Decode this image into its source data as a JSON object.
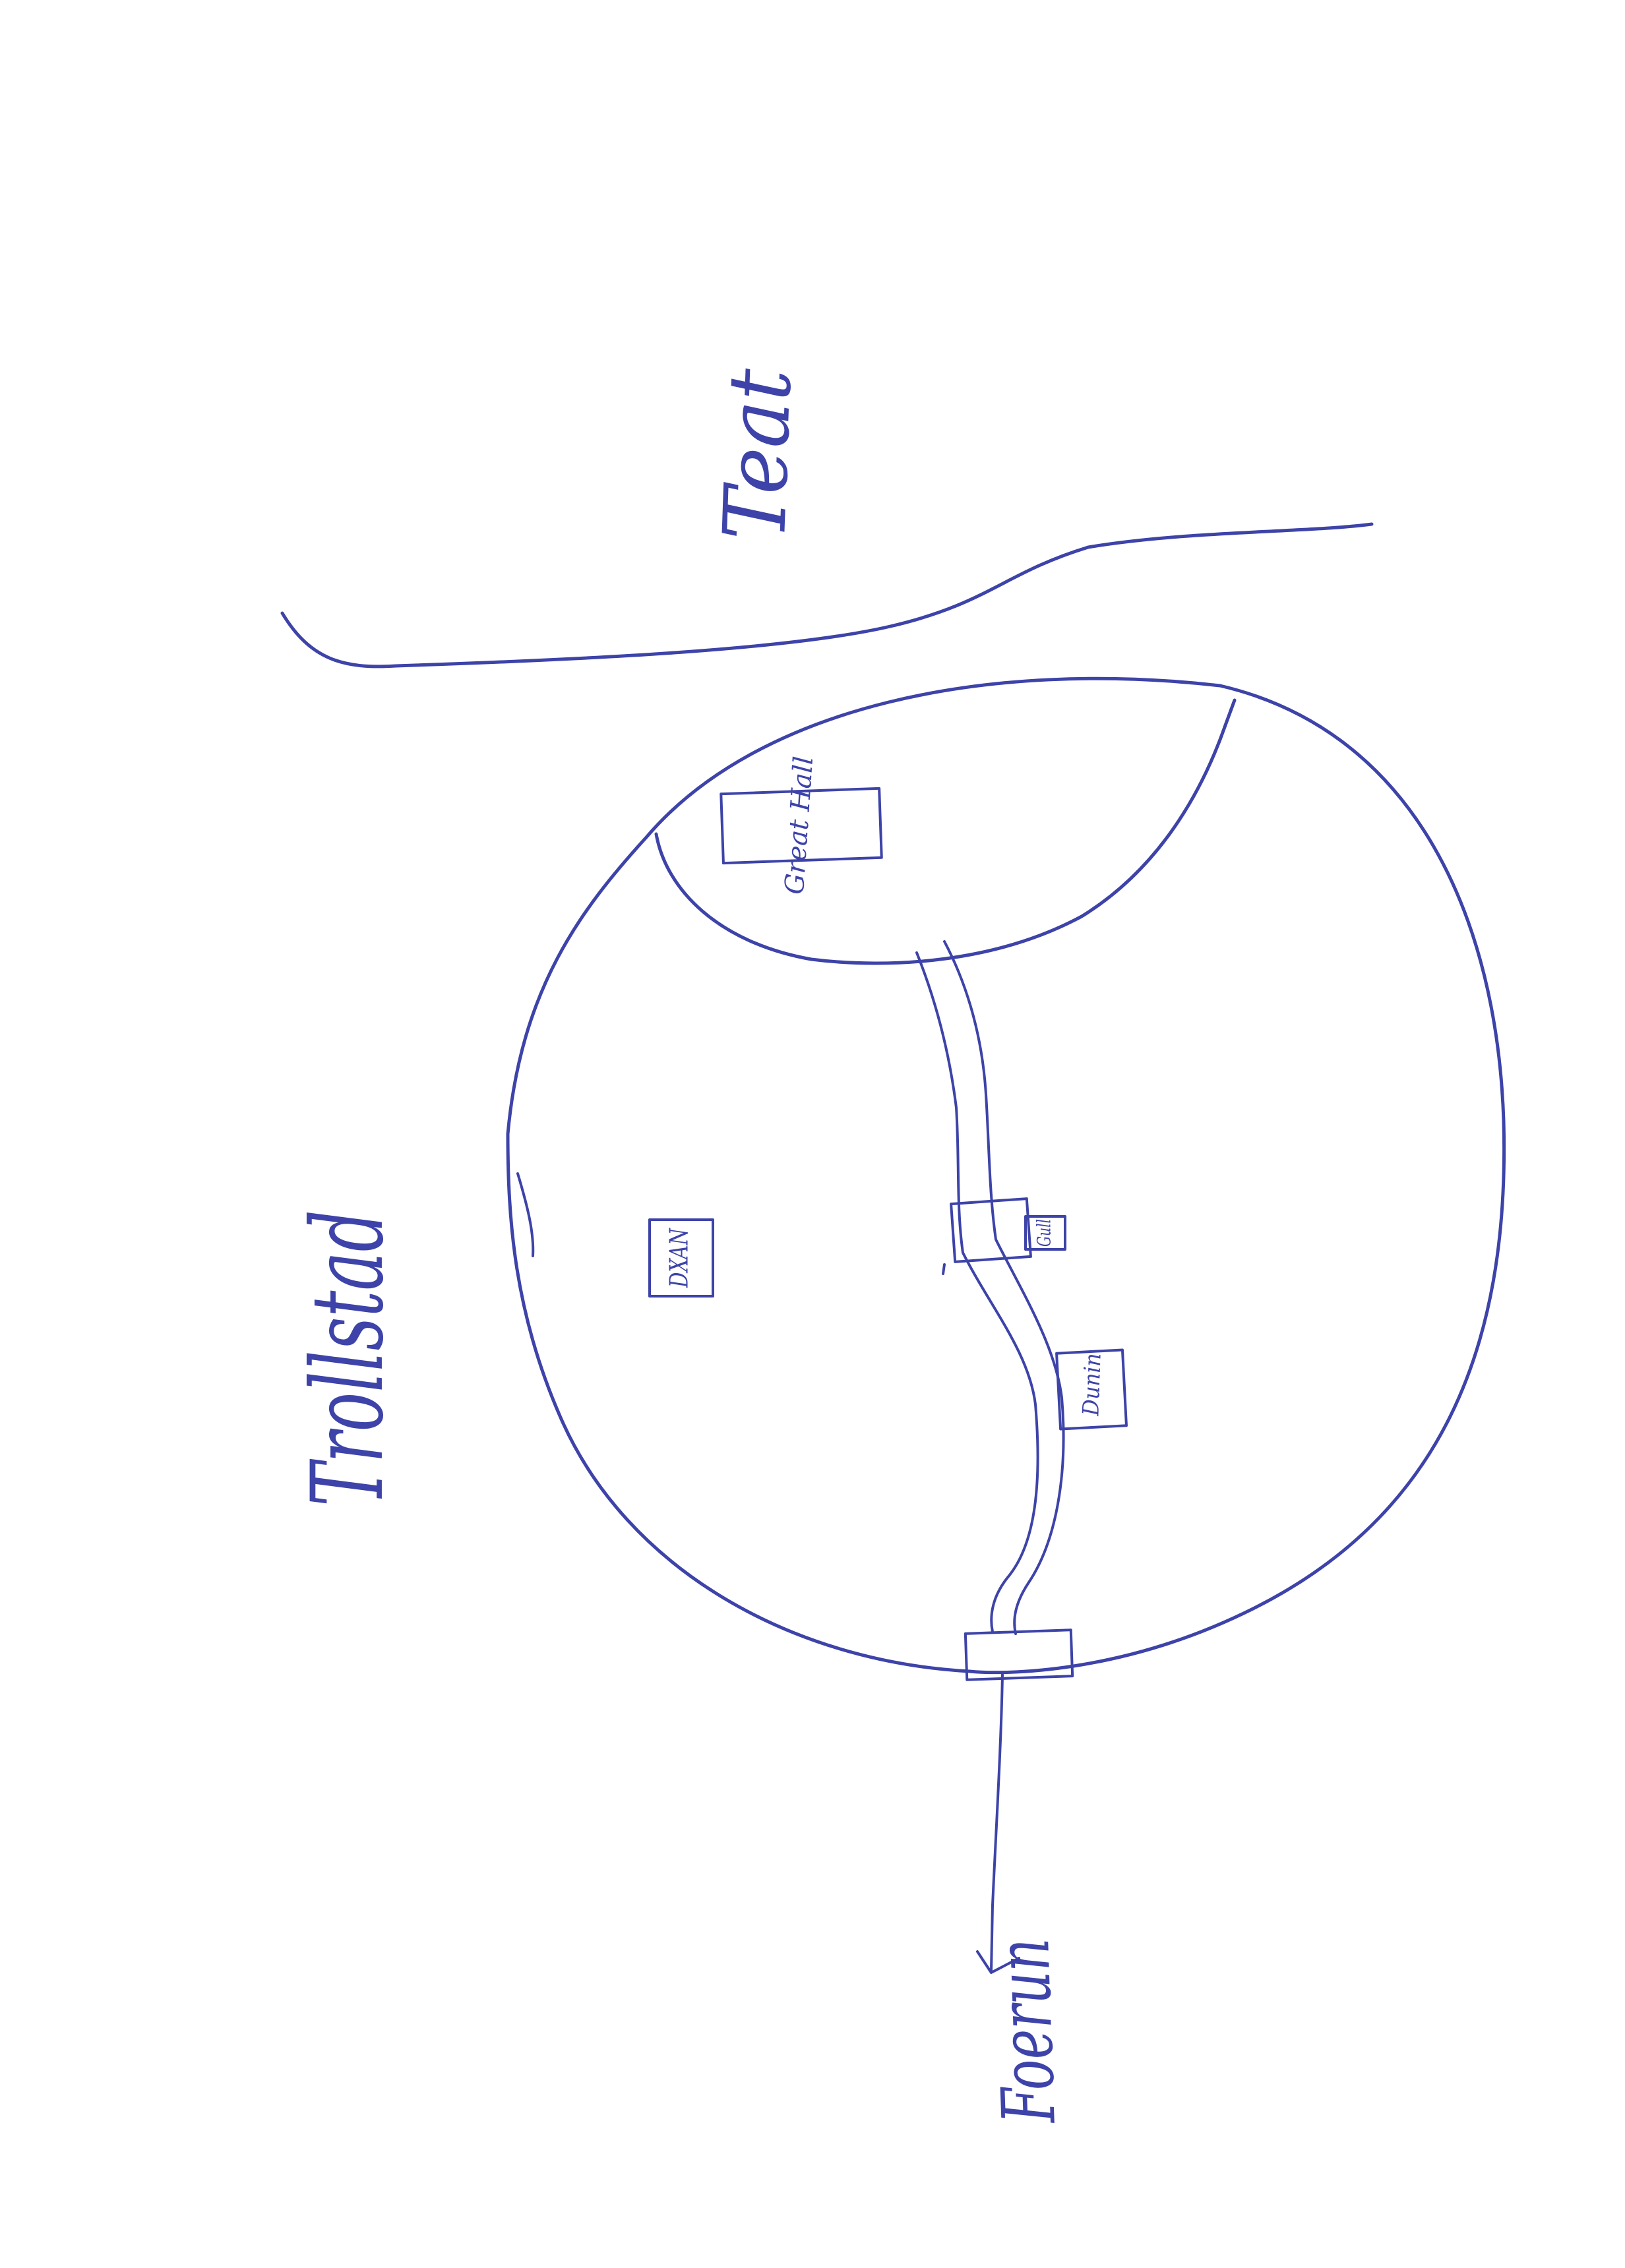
{
  "ink_color": "#3d43a8",
  "labels": {
    "region": "Trollstad",
    "river": "Teat",
    "great_hall": "Great Hall",
    "building_left": "DXAN",
    "building_gate": "Gull",
    "building_right": "Dunin",
    "road_destination": "Foerun"
  }
}
